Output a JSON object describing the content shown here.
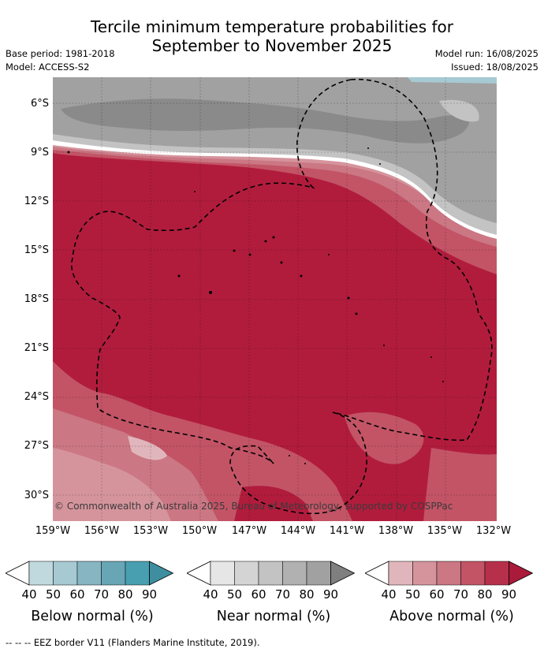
{
  "title_line1": "Tercile minimum temperature probabilities for",
  "title_line2": "September to November 2025",
  "base_period": "Base period: 1981-2018",
  "model": "Model: ACCESS-S2",
  "model_run": "Model run: 16/08/2025",
  "issued": "Issued: 18/08/2025",
  "lat_ticks": [
    "6°S",
    "9°S",
    "12°S",
    "15°S",
    "18°S",
    "21°S",
    "24°S",
    "27°S",
    "30°S"
  ],
  "lon_ticks": [
    "159°W",
    "156°W",
    "153°W",
    "150°W",
    "147°W",
    "144°W",
    "141°W",
    "138°W",
    "135°W",
    "132°W"
  ],
  "copyright": "© Commonwealth of Australia 2025, Bureau of Meteorology, supported by COSPPac",
  "legends": [
    {
      "title": "Below normal (%)",
      "labels": [
        "40",
        "50",
        "60",
        "70",
        "80",
        "90"
      ],
      "colors": [
        "#c0d9df",
        "#a6c9d2",
        "#87b6c2",
        "#68a6b6",
        "#489fb0"
      ]
    },
    {
      "title": "Near normal (%)",
      "labels": [
        "40",
        "50",
        "60",
        "70",
        "80",
        "90"
      ],
      "colors": [
        "#e6e6e6",
        "#d4d4d4",
        "#c3c3c3",
        "#b1b1b1",
        "#a1a1a1"
      ]
    },
    {
      "title": "Above normal (%)",
      "labels": [
        "40",
        "50",
        "60",
        "70",
        "80",
        "90"
      ],
      "colors": [
        "#e0b6bc",
        "#d5949c",
        "#cb7784",
        "#c25466",
        "#b6304c"
      ]
    }
  ],
  "palette": {
    "above_max": "#b11c3d",
    "near_dark": "#8a8a8a"
  },
  "footer": "-- -- -- EEZ border V11 (Flanders Marine Institute, 2019)."
}
